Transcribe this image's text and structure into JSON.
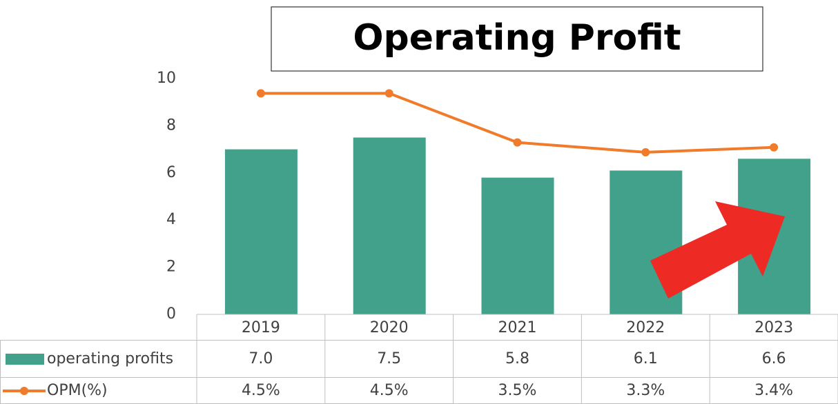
{
  "chart_data": {
    "type": "bar",
    "title": "Operating Profit",
    "categories": [
      "2019",
      "2020",
      "2021",
      "2022",
      "2023"
    ],
    "series": [
      {
        "name": "operating profits",
        "color": "#41a18a",
        "values": [
          7.0,
          7.5,
          5.8,
          6.1,
          6.6
        ],
        "value_labels": [
          "7.0",
          "7.5",
          "5.8",
          "6.1",
          "6.6"
        ]
      },
      {
        "name": "OPM(%)",
        "type": "line",
        "axis": "y2",
        "color": "#f07b2a",
        "values": [
          4.5,
          4.5,
          3.5,
          3.3,
          3.4
        ],
        "value_labels": [
          "4.5%",
          "4.5%",
          "3.5%",
          "3.3%",
          "3.4%"
        ]
      }
    ],
    "ylim": [
      0,
      10
    ],
    "yticks": [
      0,
      2,
      4,
      6,
      8,
      10
    ],
    "y2lim": [
      0,
      4.8
    ]
  }
}
